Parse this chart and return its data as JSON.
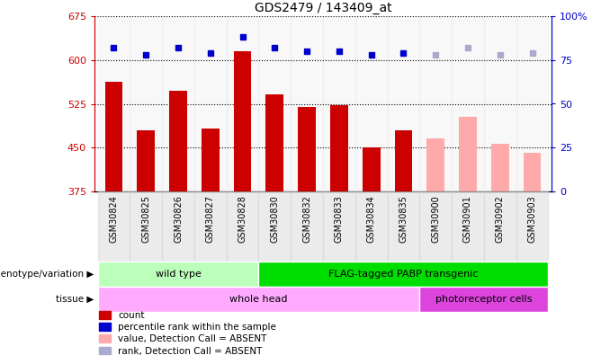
{
  "title": "GDS2479 / 143409_at",
  "samples": [
    "GSM30824",
    "GSM30825",
    "GSM30826",
    "GSM30827",
    "GSM30828",
    "GSM30830",
    "GSM30832",
    "GSM30833",
    "GSM30834",
    "GSM30835",
    "GSM30900",
    "GSM30901",
    "GSM30902",
    "GSM30903"
  ],
  "count_values": [
    562,
    480,
    548,
    483,
    615,
    541,
    519,
    523,
    451,
    480,
    null,
    null,
    null,
    null
  ],
  "count_absent_values": [
    null,
    null,
    null,
    null,
    null,
    null,
    null,
    null,
    null,
    null,
    465,
    503,
    456,
    441
  ],
  "rank_values": [
    82,
    78,
    82,
    79,
    88,
    82,
    80,
    80,
    78,
    79,
    null,
    null,
    null,
    null
  ],
  "rank_absent_values": [
    null,
    null,
    null,
    null,
    null,
    null,
    null,
    null,
    null,
    null,
    78,
    82,
    78,
    79
  ],
  "ylim_left": [
    375,
    675
  ],
  "ylim_right": [
    0,
    100
  ],
  "yticks_left": [
    375,
    450,
    525,
    600,
    675
  ],
  "yticks_right": [
    0,
    25,
    50,
    75,
    100
  ],
  "bar_color_present": "#cc0000",
  "bar_color_absent": "#ffaaaa",
  "dot_color_present": "#0000cc",
  "dot_color_absent": "#aaaacc",
  "genotype_groups": [
    {
      "label": "wild type",
      "start": 0,
      "end": 5,
      "color": "#bbffbb"
    },
    {
      "label": "FLAG-tagged PABP transgenic",
      "start": 5,
      "end": 14,
      "color": "#00dd00"
    }
  ],
  "tissue_groups": [
    {
      "label": "whole head",
      "start": 0,
      "end": 10,
      "color": "#ffaaff"
    },
    {
      "label": "photoreceptor cells",
      "start": 10,
      "end": 14,
      "color": "#dd44dd"
    }
  ],
  "legend_items": [
    {
      "label": "count",
      "color": "#cc0000"
    },
    {
      "label": "percentile rank within the sample",
      "color": "#0000cc"
    },
    {
      "label": "value, Detection Call = ABSENT",
      "color": "#ffaaaa"
    },
    {
      "label": "rank, Detection Call = ABSENT",
      "color": "#aaaacc"
    }
  ],
  "left_axis_color": "#cc0000",
  "right_axis_color": "#0000cc"
}
